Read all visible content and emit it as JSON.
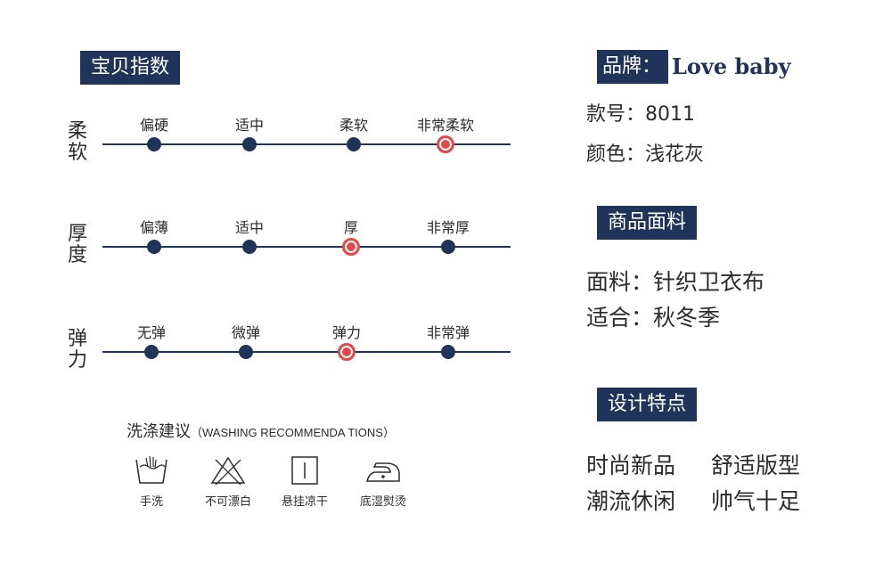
{
  "index_section": {
    "title": "宝贝指数",
    "rows": [
      {
        "label": "柔软",
        "options": [
          "偏硬",
          "适中",
          "柔软",
          "非常柔软"
        ],
        "selected": 3
      },
      {
        "label": "厚度",
        "options": [
          "偏薄",
          "适中",
          "厚",
          "非常厚"
        ],
        "selected": 2
      },
      {
        "label": "弹力",
        "options": [
          "无弹",
          "微弹",
          "弹力",
          "非常弹"
        ],
        "selected": 2
      }
    ]
  },
  "washing": {
    "title": "洗涤建议",
    "subtitle": "（WASHING RECOMMENDA TIONS）",
    "items": [
      {
        "label": "手洗",
        "icon": "hand-wash-icon"
      },
      {
        "label": "不可漂白",
        "icon": "no-bleach-icon"
      },
      {
        "label": "悬挂凉干",
        "icon": "hang-dry-icon"
      },
      {
        "label": "底湿熨烫",
        "icon": "iron-low-icon"
      }
    ]
  },
  "brand": {
    "tag": "品牌：",
    "name": "Love baby"
  },
  "model": "款号：8011",
  "color": "颜色：浅花灰",
  "fabric_section": {
    "title": "商品面料",
    "fabric": "面料：针织卫衣布",
    "season": "适合：秋冬季"
  },
  "design_section": {
    "title": "设计特点",
    "line1": [
      "时尚新品",
      "舒适版型"
    ],
    "line2": [
      "潮流休闲",
      "帅气十足"
    ]
  },
  "colors": {
    "navy": "#1f3458",
    "accent": "#e24a4a"
  }
}
